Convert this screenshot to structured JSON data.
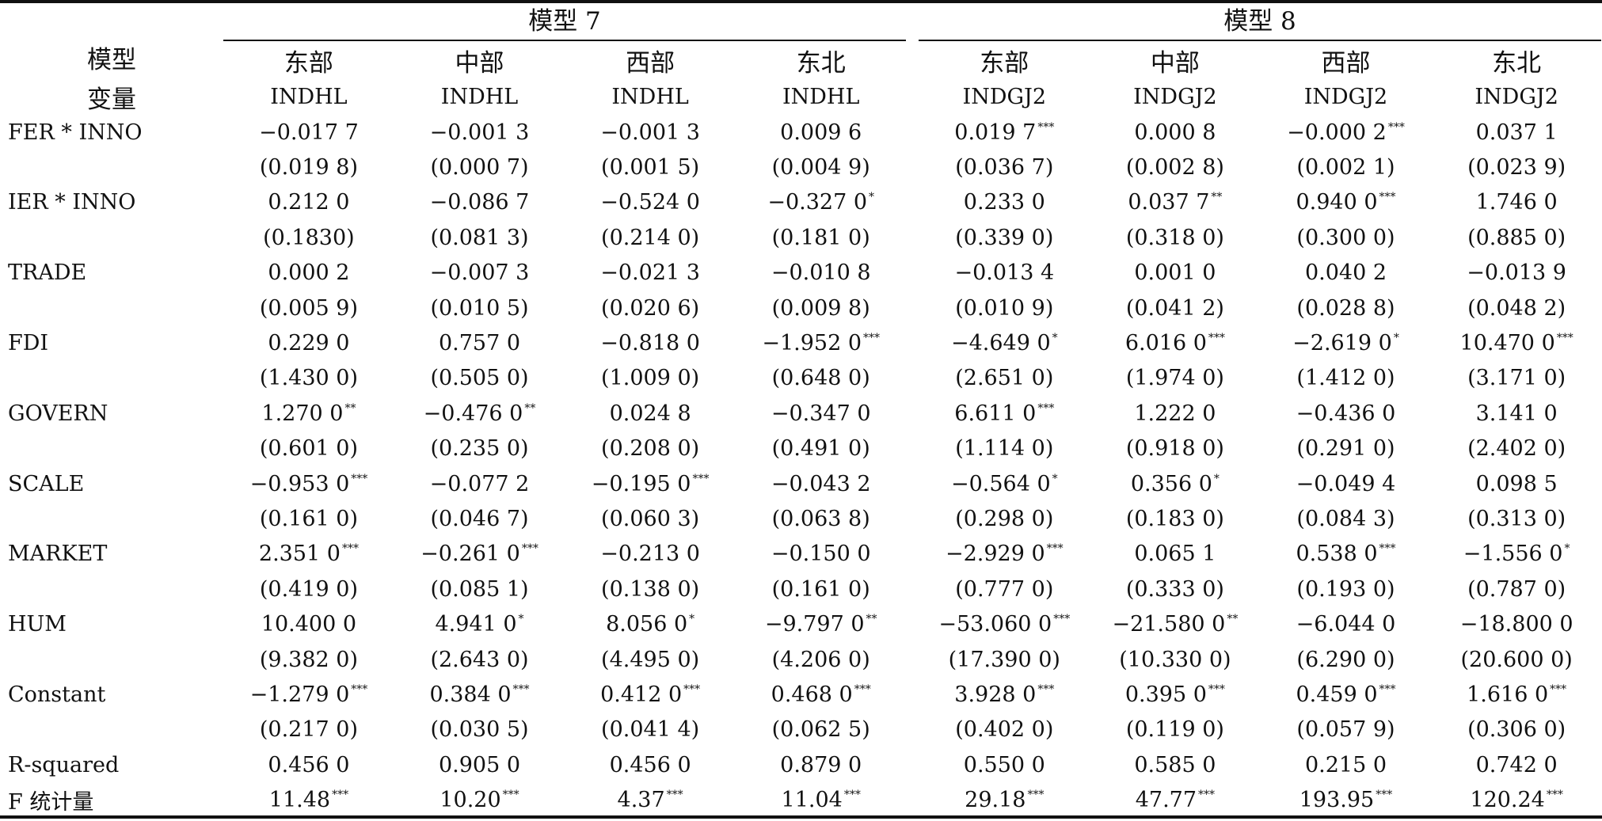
{
  "stub": {
    "line1": "模型",
    "line2": "变量"
  },
  "groups": [
    "模型 7",
    "模型 8"
  ],
  "regions": [
    "东部",
    "中部",
    "西部",
    "东北",
    "东部",
    "中部",
    "西部",
    "东北"
  ],
  "depvars": [
    "INDHL",
    "INDHL",
    "INDHL",
    "INDHL",
    "INDGJ2",
    "INDGJ2",
    "INDGJ2",
    "INDGJ2"
  ],
  "rows": [
    {
      "label": "FER * INNO",
      "cells": [
        {
          "v": "−0.017 7",
          "s": ""
        },
        {
          "v": "−0.001 3",
          "s": ""
        },
        {
          "v": "−0.001 3",
          "s": ""
        },
        {
          "v": "0.009 6",
          "s": ""
        },
        {
          "v": "0.019 7",
          "s": "***"
        },
        {
          "v": "0.000 8",
          "s": ""
        },
        {
          "v": "−0.000 2",
          "s": "***"
        },
        {
          "v": "0.037 1",
          "s": ""
        }
      ]
    },
    {
      "label": "",
      "cells": [
        {
          "v": "(0.019 8)",
          "s": ""
        },
        {
          "v": "(0.000 7)",
          "s": ""
        },
        {
          "v": "(0.001 5)",
          "s": ""
        },
        {
          "v": "(0.004 9)",
          "s": ""
        },
        {
          "v": "(0.036 7)",
          "s": ""
        },
        {
          "v": "(0.002 8)",
          "s": ""
        },
        {
          "v": "(0.002 1)",
          "s": ""
        },
        {
          "v": "(0.023 9)",
          "s": ""
        }
      ]
    },
    {
      "label": "IER * INNO",
      "cells": [
        {
          "v": "0.212 0",
          "s": ""
        },
        {
          "v": "−0.086 7",
          "s": ""
        },
        {
          "v": "−0.524 0",
          "s": ""
        },
        {
          "v": "−0.327 0",
          "s": "*"
        },
        {
          "v": "0.233 0",
          "s": ""
        },
        {
          "v": "0.037 7",
          "s": "**"
        },
        {
          "v": "0.940 0",
          "s": "***"
        },
        {
          "v": "1.746 0",
          "s": ""
        }
      ]
    },
    {
      "label": "",
      "cells": [
        {
          "v": "(0.1830)",
          "s": ""
        },
        {
          "v": "(0.081 3)",
          "s": ""
        },
        {
          "v": "(0.214 0)",
          "s": ""
        },
        {
          "v": "(0.181 0)",
          "s": ""
        },
        {
          "v": "(0.339 0)",
          "s": ""
        },
        {
          "v": "(0.318 0)",
          "s": ""
        },
        {
          "v": "(0.300 0)",
          "s": ""
        },
        {
          "v": "(0.885 0)",
          "s": ""
        }
      ]
    },
    {
      "label": "TRADE",
      "cells": [
        {
          "v": "0.000 2",
          "s": ""
        },
        {
          "v": "−0.007 3",
          "s": ""
        },
        {
          "v": "−0.021 3",
          "s": ""
        },
        {
          "v": "−0.010 8",
          "s": ""
        },
        {
          "v": "−0.013 4",
          "s": ""
        },
        {
          "v": "0.001 0",
          "s": ""
        },
        {
          "v": "0.040 2",
          "s": ""
        },
        {
          "v": "−0.013 9",
          "s": ""
        }
      ]
    },
    {
      "label": "",
      "cells": [
        {
          "v": "(0.005 9)",
          "s": ""
        },
        {
          "v": "(0.010 5)",
          "s": ""
        },
        {
          "v": "(0.020 6)",
          "s": ""
        },
        {
          "v": "(0.009 8)",
          "s": ""
        },
        {
          "v": "(0.010 9)",
          "s": ""
        },
        {
          "v": "(0.041 2)",
          "s": ""
        },
        {
          "v": "(0.028 8)",
          "s": ""
        },
        {
          "v": "(0.048 2)",
          "s": ""
        }
      ]
    },
    {
      "label": "FDI",
      "cells": [
        {
          "v": "0.229 0",
          "s": ""
        },
        {
          "v": "0.757 0",
          "s": ""
        },
        {
          "v": "−0.818 0",
          "s": ""
        },
        {
          "v": "−1.952 0",
          "s": "***"
        },
        {
          "v": "−4.649 0",
          "s": "*"
        },
        {
          "v": "6.016 0",
          "s": "***"
        },
        {
          "v": "−2.619 0",
          "s": "*"
        },
        {
          "v": "10.470 0",
          "s": "***"
        }
      ]
    },
    {
      "label": "",
      "cells": [
        {
          "v": "(1.430 0)",
          "s": ""
        },
        {
          "v": "(0.505 0)",
          "s": ""
        },
        {
          "v": "(1.009 0)",
          "s": ""
        },
        {
          "v": "(0.648 0)",
          "s": ""
        },
        {
          "v": "(2.651 0)",
          "s": ""
        },
        {
          "v": "(1.974 0)",
          "s": ""
        },
        {
          "v": "(1.412 0)",
          "s": ""
        },
        {
          "v": "(3.171 0)",
          "s": ""
        }
      ]
    },
    {
      "label": "GOVERN",
      "cells": [
        {
          "v": "1.270 0",
          "s": "**"
        },
        {
          "v": "−0.476 0",
          "s": "**"
        },
        {
          "v": "0.024 8",
          "s": ""
        },
        {
          "v": "−0.347 0",
          "s": ""
        },
        {
          "v": "6.611 0",
          "s": "***"
        },
        {
          "v": "1.222 0",
          "s": ""
        },
        {
          "v": "−0.436 0",
          "s": ""
        },
        {
          "v": "3.141 0",
          "s": ""
        }
      ]
    },
    {
      "label": "",
      "cells": [
        {
          "v": "(0.601 0)",
          "s": ""
        },
        {
          "v": "(0.235 0)",
          "s": ""
        },
        {
          "v": "(0.208 0)",
          "s": ""
        },
        {
          "v": "(0.491 0)",
          "s": ""
        },
        {
          "v": "(1.114 0)",
          "s": ""
        },
        {
          "v": "(0.918 0)",
          "s": ""
        },
        {
          "v": "(0.291 0)",
          "s": ""
        },
        {
          "v": "(2.402 0)",
          "s": ""
        }
      ]
    },
    {
      "label": "SCALE",
      "cells": [
        {
          "v": "−0.953 0",
          "s": "***"
        },
        {
          "v": "−0.077 2",
          "s": ""
        },
        {
          "v": "−0.195 0",
          "s": "***"
        },
        {
          "v": "−0.043 2",
          "s": ""
        },
        {
          "v": "−0.564 0",
          "s": "*"
        },
        {
          "v": "0.356 0",
          "s": "*"
        },
        {
          "v": "−0.049 4",
          "s": ""
        },
        {
          "v": "0.098 5",
          "s": ""
        }
      ]
    },
    {
      "label": "",
      "cells": [
        {
          "v": "(0.161 0)",
          "s": ""
        },
        {
          "v": "(0.046 7)",
          "s": ""
        },
        {
          "v": "(0.060 3)",
          "s": ""
        },
        {
          "v": "(0.063 8)",
          "s": ""
        },
        {
          "v": "(0.298 0)",
          "s": ""
        },
        {
          "v": "(0.183 0)",
          "s": ""
        },
        {
          "v": "(0.084 3)",
          "s": ""
        },
        {
          "v": "(0.313 0)",
          "s": ""
        }
      ]
    },
    {
      "label": "MARKET",
      "cells": [
        {
          "v": "2.351 0",
          "s": "***"
        },
        {
          "v": "−0.261 0",
          "s": "***"
        },
        {
          "v": "−0.213 0",
          "s": ""
        },
        {
          "v": "−0.150 0",
          "s": ""
        },
        {
          "v": "−2.929 0",
          "s": "***"
        },
        {
          "v": "0.065 1",
          "s": ""
        },
        {
          "v": "0.538 0",
          "s": "***"
        },
        {
          "v": "−1.556 0",
          "s": "*"
        }
      ]
    },
    {
      "label": "",
      "cells": [
        {
          "v": "(0.419 0)",
          "s": ""
        },
        {
          "v": "(0.085 1)",
          "s": ""
        },
        {
          "v": "(0.138 0)",
          "s": ""
        },
        {
          "v": "(0.161 0)",
          "s": ""
        },
        {
          "v": "(0.777 0)",
          "s": ""
        },
        {
          "v": "(0.333 0)",
          "s": ""
        },
        {
          "v": "(0.193 0)",
          "s": ""
        },
        {
          "v": "(0.787 0)",
          "s": ""
        }
      ]
    },
    {
      "label": "HUM",
      "cells": [
        {
          "v": "10.400 0",
          "s": ""
        },
        {
          "v": "4.941 0",
          "s": "*"
        },
        {
          "v": "8.056 0",
          "s": "*"
        },
        {
          "v": "−9.797 0",
          "s": "**"
        },
        {
          "v": "−53.060 0",
          "s": "***"
        },
        {
          "v": "−21.580 0",
          "s": "**"
        },
        {
          "v": "−6.044 0",
          "s": ""
        },
        {
          "v": "−18.800 0",
          "s": ""
        }
      ]
    },
    {
      "label": "",
      "cells": [
        {
          "v": "(9.382 0)",
          "s": ""
        },
        {
          "v": "(2.643 0)",
          "s": ""
        },
        {
          "v": "(4.495 0)",
          "s": ""
        },
        {
          "v": "(4.206 0)",
          "s": ""
        },
        {
          "v": "(17.390 0)",
          "s": ""
        },
        {
          "v": "(10.330 0)",
          "s": ""
        },
        {
          "v": "(6.290 0)",
          "s": ""
        },
        {
          "v": "(20.600 0)",
          "s": ""
        }
      ]
    },
    {
      "label": "Constant",
      "cells": [
        {
          "v": "−1.279 0",
          "s": "***"
        },
        {
          "v": "0.384 0",
          "s": "***"
        },
        {
          "v": "0.412 0",
          "s": "***"
        },
        {
          "v": "0.468 0",
          "s": "***"
        },
        {
          "v": "3.928 0",
          "s": "***"
        },
        {
          "v": "0.395 0",
          "s": "***"
        },
        {
          "v": "0.459 0",
          "s": "***"
        },
        {
          "v": "1.616 0",
          "s": "***"
        }
      ]
    },
    {
      "label": "",
      "cells": [
        {
          "v": "(0.217 0)",
          "s": ""
        },
        {
          "v": "(0.030 5)",
          "s": ""
        },
        {
          "v": "(0.041 4)",
          "s": ""
        },
        {
          "v": "(0.062 5)",
          "s": ""
        },
        {
          "v": "(0.402 0)",
          "s": ""
        },
        {
          "v": "(0.119 0)",
          "s": ""
        },
        {
          "v": "(0.057 9)",
          "s": ""
        },
        {
          "v": "(0.306 0)",
          "s": ""
        }
      ]
    },
    {
      "label": "R-squared",
      "cells": [
        {
          "v": "0.456 0",
          "s": ""
        },
        {
          "v": "0.905 0",
          "s": ""
        },
        {
          "v": "0.456 0",
          "s": ""
        },
        {
          "v": "0.879 0",
          "s": ""
        },
        {
          "v": "0.550 0",
          "s": ""
        },
        {
          "v": "0.585 0",
          "s": ""
        },
        {
          "v": "0.215 0",
          "s": ""
        },
        {
          "v": "0.742 0",
          "s": ""
        }
      ]
    },
    {
      "label": "F 统计量",
      "cells": [
        {
          "v": "11.48",
          "s": "***"
        },
        {
          "v": "10.20",
          "s": "***"
        },
        {
          "v": "4.37",
          "s": "***"
        },
        {
          "v": "11.04",
          "s": "***"
        },
        {
          "v": "29.18",
          "s": "***"
        },
        {
          "v": "47.77",
          "s": "***"
        },
        {
          "v": "193.95",
          "s": "***"
        },
        {
          "v": "120.24",
          "s": "***"
        }
      ]
    }
  ]
}
